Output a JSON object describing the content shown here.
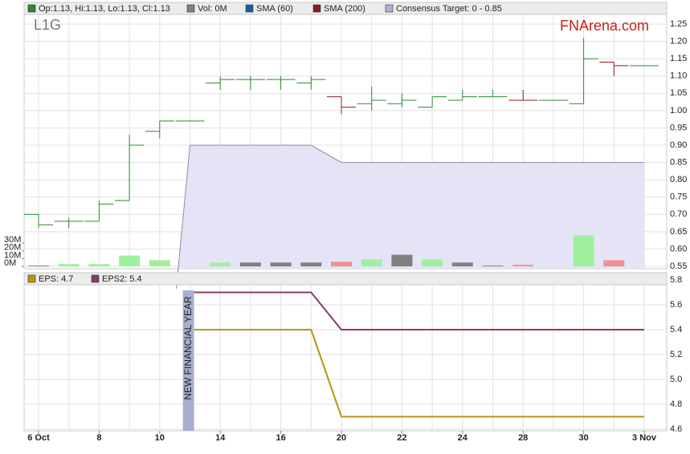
{
  "chart_data": [
    {
      "type": "ohlc",
      "title": "L1G",
      "watermark": "FNArena.com",
      "open": [
        0.7,
        0.68,
        0.68,
        0.74,
        0.94,
        0.97,
        1.08,
        1.09,
        1.09,
        1.08,
        1.04,
        1.02,
        1.02,
        1.01,
        1.03,
        1.04,
        1.03,
        1.03,
        1.02,
        1.14,
        1.13
      ],
      "high": [
        0.7,
        0.69,
        0.74,
        0.93,
        0.97,
        0.97,
        1.1,
        1.1,
        1.1,
        1.1,
        1.04,
        1.07,
        1.05,
        1.04,
        1.06,
        1.06,
        1.06,
        1.03,
        1.21,
        1.14,
        1.13
      ],
      "low": [
        0.66,
        0.66,
        0.68,
        0.74,
        0.92,
        0.97,
        1.06,
        1.06,
        1.06,
        1.06,
        0.99,
        1.0,
        1.01,
        1.01,
        1.03,
        1.04,
        1.03,
        1.03,
        1.02,
        1.1,
        1.13
      ],
      "close": [
        0.67,
        0.68,
        0.73,
        0.9,
        0.97,
        0.97,
        1.09,
        1.09,
        1.09,
        1.09,
        1.01,
        1.03,
        1.03,
        1.04,
        1.04,
        1.04,
        1.03,
        1.03,
        1.15,
        1.13,
        1.13
      ],
      "bar_colors": [
        "#2a8a2a",
        "#2a8a2a",
        "#2a8a2a",
        "#2a8a2a",
        "#2a8a2a",
        "#2a8a2a",
        "#2a8a2a",
        "#2a8a2a",
        "#2a8a2a",
        "#2a8a2a",
        "#8b1a1a",
        "#2a8a2a",
        "#2a8a2a",
        "#2a8a2a",
        "#2a8a2a",
        "#2a8a2a",
        "#8b1a1a",
        "#2a8a2a",
        "#2a8a2a",
        "#8b1a1a",
        "#2a8a2a"
      ],
      "volume": [
        1,
        3,
        3,
        14,
        8,
        0,
        5,
        5,
        5,
        5,
        6,
        9,
        15,
        9,
        5,
        1,
        2,
        0,
        40,
        8,
        0
      ],
      "volume_colors": [
        "#808080",
        "#a0f0a0",
        "#a0f0a0",
        "#a0f0a0",
        "#a0f0a0",
        "#a0f0a0",
        "#a0f0a0",
        "#808080",
        "#808080",
        "#808080",
        "#f09090",
        "#a0f0a0",
        "#808080",
        "#a0f0a0",
        "#808080",
        "#808080",
        "#f09090",
        "#808080",
        "#a0f0a0",
        "#f09090",
        "#808080"
      ],
      "consensus": {
        "color": "#e4e4f6",
        "line_color": "#8a8aa8",
        "values": [
          null,
          null,
          null,
          null,
          null,
          0.9,
          0.9,
          0.9,
          0.9,
          0.9,
          0.85,
          0.85,
          0.85,
          0.85,
          0.85,
          0.85,
          0.85,
          0.85,
          0.85,
          0.85,
          0.85
        ]
      },
      "legend": [
        {
          "label": "Op:1.13, Hi:1.13, Lo:1.13, Cl:1.13",
          "color": "#2a8a2a"
        },
        {
          "label": "Vol: 0M",
          "color": "#808080"
        },
        {
          "label": "SMA (60)",
          "color": "#1f5fa0"
        },
        {
          "label": "SMA (200)",
          "color": "#8b1a2a"
        },
        {
          "label": "Consensus Target: 0 - 0.85",
          "color": "#b0b0d8"
        }
      ],
      "ylim": [
        0.543,
        1.278
      ],
      "yticks": [
        0.55,
        {
          "value": 0.6,
          "label": "0.60"
        },
        0.65,
        {
          "value": 0.7,
          "label": "0.70"
        },
        0.75,
        {
          "value": 0.8,
          "label": "0.80"
        },
        0.85,
        {
          "value": 0.9,
          "label": "0.90"
        },
        0.95,
        {
          "value": 1,
          "label": "1.00"
        },
        1.05,
        {
          "value": 1.1,
          "label": "1.10"
        },
        1.15,
        {
          "value": 1.2,
          "label": "1.20"
        },
        1.25
      ],
      "y2lim": [
        -3,
        325
      ],
      "y2ticks": [
        {
          "value": 0,
          "label": "0M"
        },
        {
          "value": 10,
          "label": "10M"
        },
        {
          "value": 20,
          "label": "20M"
        },
        {
          "value": 30,
          "label": "30M"
        }
      ],
      "grid": true
    },
    {
      "type": "line",
      "categories": [
        "6 Oct",
        null,
        "8",
        null,
        "10",
        null,
        "14",
        null,
        "16",
        null,
        "20",
        null,
        "22",
        null,
        "24",
        null,
        "28",
        null,
        "30",
        null,
        "3 Nov"
      ],
      "series": [
        {
          "name": "EPS: 4.7",
          "color": "#b8960c",
          "values": [
            null,
            null,
            null,
            null,
            null,
            5.4,
            5.4,
            5.4,
            5.4,
            5.4,
            4.7,
            4.7,
            4.7,
            4.7,
            4.7,
            4.7,
            4.7,
            4.7,
            4.7,
            4.7,
            4.7
          ]
        },
        {
          "name": "EPS2: 5.4",
          "color": "#8a3a6e",
          "values": [
            null,
            null,
            null,
            null,
            null,
            5.7,
            5.7,
            5.7,
            5.7,
            5.7,
            5.4,
            5.4,
            5.4,
            5.4,
            5.4,
            5.4,
            5.4,
            5.4,
            5.4,
            5.4,
            5.4
          ]
        }
      ],
      "annotation": "NEW FINANCIAL YEAR",
      "ylim": [
        4.587,
        5.858
      ],
      "yticks": [
        4.6,
        4.8,
        {
          "value": 5,
          "label": "5.0"
        },
        5.2,
        5.4,
        5.6,
        5.8
      ],
      "grid": true
    }
  ]
}
